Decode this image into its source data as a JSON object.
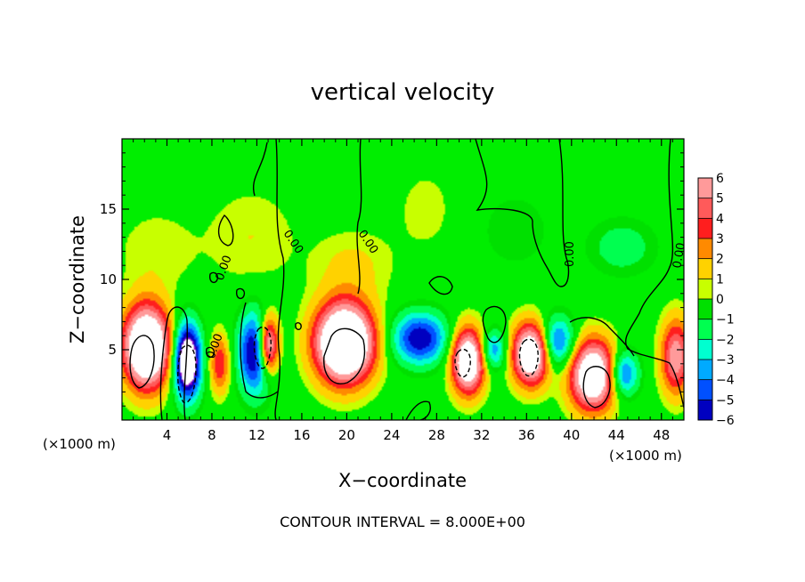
{
  "chart_data": {
    "type": "heatmap",
    "title": "vertical velocity",
    "xlabel": "X−coordinate",
    "ylabel": "Z−coordinate",
    "x_unit_left": "(×1000 m)",
    "x_unit_right": "(×1000 m)",
    "xlim": [
      0,
      50
    ],
    "ylim": [
      0,
      20
    ],
    "x_ticks": [
      4,
      8,
      12,
      16,
      20,
      24,
      28,
      32,
      36,
      40,
      44,
      48
    ],
    "x_tick_labels": [
      "4",
      "8",
      "12",
      "16",
      "20",
      "24",
      "28",
      "32",
      "36",
      "40",
      "44",
      "48"
    ],
    "y_ticks": [
      5,
      10,
      15
    ],
    "y_tick_labels": [
      "5",
      "10",
      "15"
    ],
    "colorbar": {
      "levels": [
        6,
        5,
        4,
        3,
        2,
        1,
        0,
        -1,
        -2,
        -3,
        -4,
        -5,
        -6
      ],
      "labels": [
        "6",
        "5",
        "4",
        "3",
        "2",
        "1",
        "0",
        "−1",
        "−2",
        "−3",
        "−4",
        "−5",
        "−6"
      ],
      "colors": [
        "#ff9a9a",
        "#ff5a5a",
        "#ff1e1e",
        "#ff8a00",
        "#ffd200",
        "#c8ff00",
        "#00e000",
        "#00ff50",
        "#00ffd0",
        "#00aaff",
        "#0050ff",
        "#0000c0",
        "#8000c0"
      ]
    },
    "background_color": "#00ee00",
    "cells": [
      {
        "x": 2.2,
        "z": 5.2,
        "sx": 2.0,
        "sz": 2.8,
        "v": 12
      },
      {
        "x": 5.8,
        "z": 4.2,
        "sx": 1.2,
        "sz": 2.6,
        "v": -10
      },
      {
        "x": 8.7,
        "z": 4.0,
        "sx": 0.9,
        "sz": 2.0,
        "v": 4
      },
      {
        "x": 11.9,
        "z": 4.8,
        "sx": 1.5,
        "sz": 2.8,
        "v": -7
      },
      {
        "x": 13.0,
        "z": 5.3,
        "sx": 0.9,
        "sz": 2.0,
        "v": 9
      },
      {
        "x": 19.8,
        "z": 5.5,
        "sx": 2.5,
        "sz": 2.7,
        "v": 13
      },
      {
        "x": 26.5,
        "z": 5.8,
        "sx": 2.4,
        "sz": 1.8,
        "v": -6
      },
      {
        "x": 30.8,
        "z": 4.2,
        "sx": 1.4,
        "sz": 2.2,
        "v": 10
      },
      {
        "x": 33.0,
        "z": 5.0,
        "sx": 1.2,
        "sz": 1.4,
        "v": -4
      },
      {
        "x": 36.4,
        "z": 4.7,
        "sx": 1.6,
        "sz": 2.1,
        "v": 10
      },
      {
        "x": 38.7,
        "z": 5.5,
        "sx": 1.6,
        "sz": 1.8,
        "v": -5
      },
      {
        "x": 41.9,
        "z": 3.2,
        "sx": 2.0,
        "sz": 2.4,
        "v": 10
      },
      {
        "x": 44.6,
        "z": 3.3,
        "sx": 1.3,
        "sz": 1.6,
        "v": -5
      },
      {
        "x": 49.3,
        "z": 4.5,
        "sx": 1.3,
        "sz": 2.6,
        "v": 6
      },
      {
        "x": 44.5,
        "z": 12.3,
        "sx": 3.0,
        "sz": 2.0,
        "v": -1.6
      },
      {
        "x": 35.0,
        "z": 13.5,
        "sx": 3.0,
        "sz": 2.6,
        "v": -1.0
      },
      {
        "x": 11.5,
        "z": 13.0,
        "sx": 4.0,
        "sz": 3.5,
        "v": 1.0
      },
      {
        "x": 3.0,
        "z": 12.0,
        "sx": 3.5,
        "sz": 3.0,
        "v": 0.9
      },
      {
        "x": 20.5,
        "z": 11.0,
        "sx": 3.5,
        "sz": 2.5,
        "v": 1.2
      },
      {
        "x": 27.0,
        "z": 15.0,
        "sx": 3.0,
        "sz": 3.5,
        "v": 0.7
      }
    ],
    "contour_interval_text": "CONTOUR INTERVAL = 8.000E+00",
    "zero_contour_label": "0.00"
  }
}
